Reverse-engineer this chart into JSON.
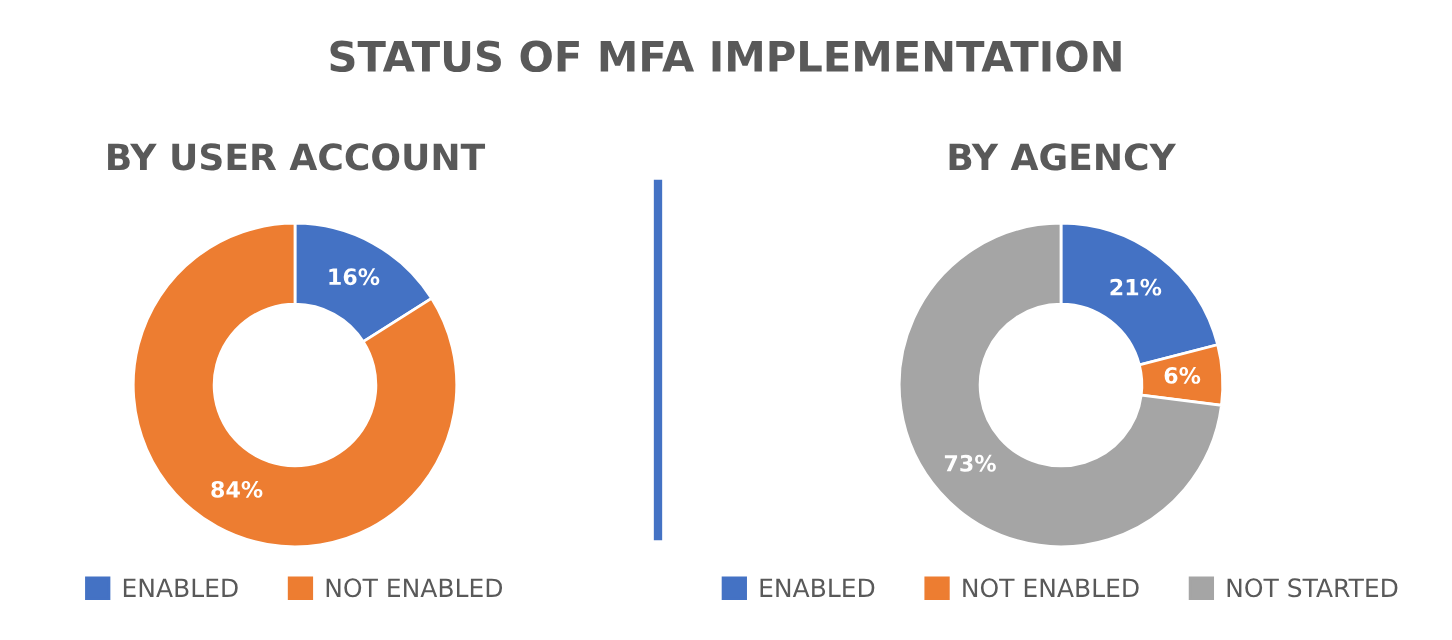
{
  "chart_data": [
    {
      "type": "other",
      "title": "STATUS OF MFA IMPLEMENTATION"
    },
    {
      "type": "donut",
      "title": "BY USER ACCOUNT",
      "categories": [
        "ENABLED",
        "NOT ENABLED"
      ],
      "values": [
        16,
        84
      ],
      "colors": [
        "#4472c4",
        "#ed7d31"
      ],
      "value_labels": [
        "16%",
        "84%"
      ],
      "legend": "bottom"
    },
    {
      "type": "donut",
      "title": "BY AGENCY",
      "categories": [
        "ENABLED",
        "NOT ENABLED",
        "NOT STARTED"
      ],
      "values": [
        21,
        6,
        73
      ],
      "colors": [
        "#4472c4",
        "#ed7d31",
        "#a5a5a5"
      ],
      "value_labels": [
        "21%",
        "6%",
        "73%"
      ],
      "legend": "bottom"
    }
  ]
}
